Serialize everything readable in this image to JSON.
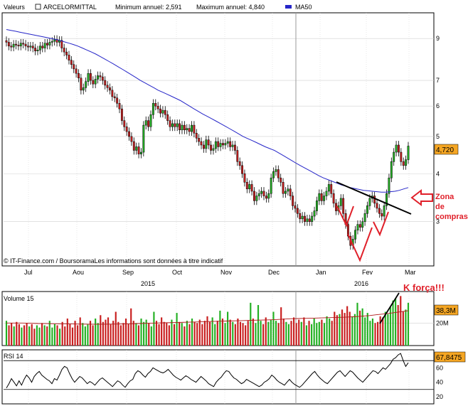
{
  "header": {
    "series_label": "Valeurs",
    "instrument": "ARCELORMITTAL",
    "min_label": "Minimum annuel: 2,591",
    "max_label": "Maximum annuel: 4,840",
    "ma_label": "MA50"
  },
  "copyright": "© IT-Finance.com / BoursoramaLes informations sont données à titre indicatif",
  "colors": {
    "up": "#22b022",
    "down": "#c81e1e",
    "ma": "#2525c8",
    "annotation": "#e0202a",
    "badge": "#f5a623",
    "grid": "#d0d0d0"
  },
  "annotations": {
    "zone_line1": "Zona",
    "zone_line2": "de",
    "zone_line3": "compras",
    "k_force": "K força!!!"
  },
  "chart_data": [
    {
      "type": "candlestick",
      "title": "ARCELORMITTAL",
      "y_scale": "log",
      "ylim": [
        2.3,
        10.5
      ],
      "y_ticks": [
        3,
        4,
        5,
        6,
        7,
        9
      ],
      "x_month_labels": [
        "Jul",
        "Aou",
        "Sep",
        "Oct",
        "Nov",
        "Dec",
        "Jan",
        "Fev",
        "Mar"
      ],
      "x_year_labels": [
        "2015",
        "2016"
      ],
      "last_price": "4,720",
      "close": [
        8.8,
        8.6,
        8.55,
        8.7,
        8.65,
        8.6,
        8.75,
        8.7,
        8.6,
        8.55,
        8.6,
        8.5,
        8.35,
        8.4,
        8.6,
        8.5,
        8.75,
        8.65,
        8.8,
        8.85,
        8.95,
        8.8,
        8.9,
        8.5,
        8.3,
        8.15,
        7.9,
        7.7,
        7.5,
        7.3,
        7.1,
        6.6,
        6.7,
        6.95,
        7.3,
        7.0,
        6.85,
        7.05,
        7.2,
        7.15,
        7.0,
        6.8,
        6.7,
        6.6,
        6.35,
        6.3,
        6.1,
        5.9,
        5.5,
        5.3,
        5.15,
        5.0,
        4.85,
        4.6,
        4.7,
        4.5,
        4.55,
        5.35,
        5.5,
        5.3,
        5.7,
        6.1,
        6.0,
        5.9,
        5.75,
        5.85,
        5.7,
        5.5,
        5.3,
        5.4,
        5.3,
        5.4,
        5.2,
        5.35,
        5.2,
        5.25,
        5.15,
        5.35,
        5.1,
        4.95,
        4.85,
        4.75,
        4.65,
        4.9,
        4.75,
        4.6,
        4.65,
        4.85,
        4.7,
        4.8,
        4.75,
        4.8,
        4.85,
        4.7,
        4.75,
        4.6,
        4.3,
        4.2,
        4.0,
        3.8,
        3.65,
        3.75,
        3.6,
        3.4,
        3.5,
        3.55,
        3.6,
        3.5,
        3.45,
        3.55,
        3.9,
        4.05,
        4.1,
        3.9,
        3.8,
        3.55,
        3.6,
        3.65,
        3.5,
        3.3,
        3.25,
        3.15,
        3.05,
        3.1,
        3.0,
        3.05,
        3.0,
        3.1,
        3.2,
        3.4,
        3.55,
        3.4,
        3.5,
        3.6,
        3.75,
        3.55,
        3.35,
        3.2,
        3.3,
        3.45,
        3.15,
        2.95,
        2.75,
        2.6,
        2.7,
        2.85,
        2.95,
        2.9,
        3.0,
        3.15,
        3.3,
        3.45,
        3.5,
        3.35,
        3.25,
        3.15,
        3.1,
        3.3,
        3.55,
        3.9,
        4.3,
        4.55,
        4.75,
        4.55,
        4.3,
        4.2,
        4.35,
        4.72
      ],
      "ma50": [
        9.5,
        9.45,
        9.4,
        9.35,
        9.3,
        9.25,
        9.2,
        9.15,
        9.1,
        9.05,
        9.0,
        8.95,
        8.9,
        8.82,
        8.75,
        8.68,
        8.6,
        8.5,
        8.4,
        8.3,
        8.2,
        8.08,
        7.96,
        7.84,
        7.72,
        7.6,
        7.48,
        7.36,
        7.24,
        7.12,
        7.0,
        6.9,
        6.8,
        6.7,
        6.6,
        6.52,
        6.44,
        6.36,
        6.28,
        6.2,
        6.1,
        6.0,
        5.9,
        5.81,
        5.72,
        5.64,
        5.56,
        5.48,
        5.4,
        5.32,
        5.24,
        5.16,
        5.08,
        5.0,
        4.94,
        4.88,
        4.82,
        4.76,
        4.7,
        4.65,
        4.6,
        4.53,
        4.46,
        4.39,
        4.32,
        4.25,
        4.19,
        4.13,
        4.07,
        4.01,
        3.95,
        3.9,
        3.86,
        3.82,
        3.78,
        3.74,
        3.71,
        3.68,
        3.66,
        3.64,
        3.62,
        3.61,
        3.6,
        3.59,
        3.58,
        3.58,
        3.59,
        3.6,
        3.62,
        3.65,
        3.68
      ]
    },
    {
      "type": "bar",
      "title": "Volume 15",
      "y_ticks": [
        "20M"
      ],
      "last_value": "38,3M",
      "volume_m": [
        22,
        18,
        20,
        17,
        21,
        19,
        16,
        18,
        20,
        17,
        19,
        15,
        18,
        16,
        20,
        18,
        17,
        22,
        16,
        19,
        18,
        15,
        21,
        17,
        24,
        19,
        16,
        22,
        18,
        25,
        20,
        17,
        19,
        22,
        18,
        24,
        20,
        27,
        21,
        23,
        25,
        19,
        22,
        30,
        21,
        18,
        20,
        24,
        19,
        33,
        22,
        20,
        18,
        24,
        21,
        23,
        20,
        17,
        30,
        22,
        19,
        25,
        21,
        20,
        18,
        23,
        19,
        29,
        21,
        20,
        17,
        22,
        19,
        24,
        21,
        20,
        23,
        19,
        22,
        26,
        21,
        25,
        19,
        22,
        31,
        24,
        20,
        30,
        23,
        21,
        19,
        24,
        21,
        20,
        18,
        22,
        38,
        24,
        20,
        36,
        22,
        19,
        25,
        21,
        23,
        30,
        22,
        20,
        34,
        24,
        21,
        19,
        22,
        25,
        20,
        23,
        21,
        25,
        18,
        22,
        19,
        24,
        20,
        21,
        23,
        20,
        26,
        24,
        22,
        30,
        27,
        28,
        32,
        29,
        35,
        30,
        26,
        28,
        38,
        31,
        33,
        25,
        29,
        22,
        24,
        20,
        21,
        26,
        25,
        30,
        28,
        34,
        40,
        42,
        36,
        44,
        30,
        32,
        38
      ],
      "vol_ma": [
        20,
        20,
        20,
        19.8,
        19.6,
        19.5,
        19.4,
        19.3,
        19.2,
        19.1,
        19,
        18.9,
        18.9,
        19,
        19.1,
        19.2,
        19.4,
        19.6,
        19.8,
        20,
        20.2,
        20.4,
        20.6,
        20.8,
        21,
        21.2,
        21.4,
        21.6,
        21.8,
        22,
        22.2,
        22.4,
        22.6,
        22.8,
        23,
        23.4,
        23.8,
        24,
        24.2,
        24.4,
        24.6,
        24.8,
        25,
        25.2,
        25.6,
        26,
        26.6,
        27.4,
        28.2,
        29,
        30,
        31
      ]
    },
    {
      "type": "line",
      "title": "RSI 14",
      "ylim": [
        20,
        80
      ],
      "y_ticks": [
        20,
        40,
        60
      ],
      "last_value": "67,8475",
      "rsi": [
        32,
        38,
        45,
        40,
        35,
        42,
        36,
        44,
        50,
        46,
        40,
        48,
        52,
        55,
        50,
        47,
        44,
        42,
        38,
        45,
        43,
        50,
        58,
        62,
        60,
        52,
        45,
        40,
        44,
        48,
        46,
        42,
        38,
        41,
        39,
        36,
        40,
        44,
        46,
        43,
        40,
        37,
        34,
        38,
        42,
        40,
        36,
        33,
        38,
        42,
        44,
        52,
        56,
        54,
        50,
        47,
        52,
        55,
        60,
        58,
        56,
        54,
        53,
        55,
        58,
        54,
        50,
        47,
        45,
        43,
        46,
        49,
        47,
        44,
        42,
        40,
        44,
        48,
        45,
        42,
        38,
        36,
        34,
        40,
        44,
        47,
        52,
        56,
        55,
        50,
        46,
        44,
        41,
        38,
        40,
        44,
        42,
        40,
        38,
        36,
        34,
        36,
        40,
        42,
        45,
        50,
        47,
        43,
        40,
        38,
        36,
        40,
        44,
        40,
        37,
        35,
        33,
        36,
        40,
        44,
        48,
        52,
        55,
        50,
        46,
        43,
        40,
        38,
        42,
        46,
        50,
        54,
        56,
        52,
        48,
        52,
        56,
        54,
        50,
        46,
        43,
        40,
        44,
        48,
        52,
        56,
        55,
        52,
        56,
        60,
        58,
        62,
        66,
        72,
        74,
        78,
        80,
        70,
        62,
        67
      ]
    }
  ]
}
